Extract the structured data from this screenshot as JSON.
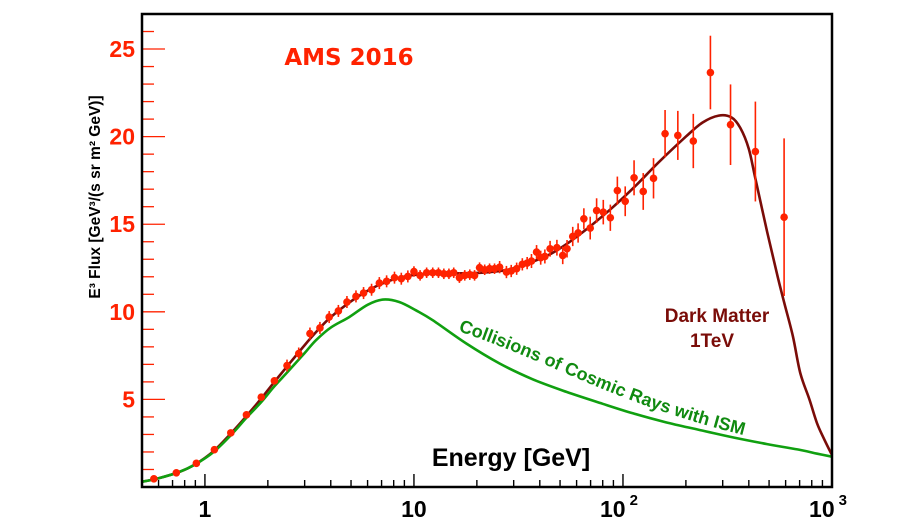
{
  "chart_data": {
    "type": "scatter",
    "title": "AMS 2016",
    "xlabel": "Energy [GeV]",
    "ylabel": "E³ Flux [GeV³/(s sr m² GeV)]",
    "xscale": "log",
    "xlim": [
      0.5,
      1000
    ],
    "ylim": [
      0,
      27
    ],
    "grid": false,
    "colors": {
      "data": "#ff2200",
      "dark_matter": "#7a0c08",
      "cosmic_rays": "#10a010",
      "ytick": "#ff2200",
      "axis": "#000000",
      "title": "#ff2200",
      "dm_label": "#7a0c08",
      "cr_label": "#108a10"
    },
    "x_ticks": [
      {
        "value": 1,
        "label": "1",
        "exp": ""
      },
      {
        "value": 10,
        "label": "10",
        "exp": ""
      },
      {
        "value": 100,
        "label": "10",
        "exp": "2"
      },
      {
        "value": 1000,
        "label": "10",
        "exp": "3"
      }
    ],
    "y_ticks": [
      {
        "value": 5,
        "label": "5"
      },
      {
        "value": 10,
        "label": "10"
      },
      {
        "value": 15,
        "label": "15"
      },
      {
        "value": 20,
        "label": "20"
      },
      {
        "value": 25,
        "label": "25"
      }
    ],
    "annotations": {
      "dark_matter_line1": "Dark Matter",
      "dark_matter_line2": "1TeV",
      "cosmic_rays": "Collisions of Cosmic Rays with ISM"
    },
    "series": [
      {
        "name": "AMS data",
        "type": "scatter",
        "points": [
          {
            "x": 0.57,
            "y": 0.47,
            "err": 0.05
          },
          {
            "x": 0.73,
            "y": 0.81,
            "err": 0.05
          },
          {
            "x": 0.91,
            "y": 1.35,
            "err": 0.06
          },
          {
            "x": 1.11,
            "y": 2.13,
            "err": 0.07
          },
          {
            "x": 1.33,
            "y": 3.09,
            "err": 0.08
          },
          {
            "x": 1.58,
            "y": 4.12,
            "err": 0.1
          },
          {
            "x": 1.86,
            "y": 5.13,
            "err": 0.12
          },
          {
            "x": 2.15,
            "y": 6.06,
            "err": 0.13
          },
          {
            "x": 2.47,
            "y": 6.93,
            "err": 0.15
          },
          {
            "x": 2.81,
            "y": 7.62,
            "err": 0.18
          },
          {
            "x": 3.18,
            "y": 8.76,
            "err": 0.25
          },
          {
            "x": 3.55,
            "y": 9.08,
            "err": 0.25
          },
          {
            "x": 3.93,
            "y": 9.7,
            "err": 0.25
          },
          {
            "x": 4.35,
            "y": 10.05,
            "err": 0.25
          },
          {
            "x": 4.78,
            "y": 10.56,
            "err": 0.25
          },
          {
            "x": 5.28,
            "y": 10.88,
            "err": 0.25
          },
          {
            "x": 5.74,
            "y": 11.07,
            "err": 0.25
          },
          {
            "x": 6.27,
            "y": 11.26,
            "err": 0.25
          },
          {
            "x": 6.83,
            "y": 11.64,
            "err": 0.25
          },
          {
            "x": 7.4,
            "y": 11.74,
            "err": 0.25
          },
          {
            "x": 8.07,
            "y": 11.95,
            "err": 0.25
          },
          {
            "x": 8.7,
            "y": 11.89,
            "err": 0.25
          },
          {
            "x": 9.35,
            "y": 12.02,
            "err": 0.25
          },
          {
            "x": 10.0,
            "y": 12.3,
            "err": 0.3
          },
          {
            "x": 10.7,
            "y": 12.08,
            "err": 0.3
          },
          {
            "x": 11.5,
            "y": 12.23,
            "err": 0.3
          },
          {
            "x": 12.3,
            "y": 12.23,
            "err": 0.3
          },
          {
            "x": 13.1,
            "y": 12.23,
            "err": 0.3
          },
          {
            "x": 13.9,
            "y": 12.17,
            "err": 0.3
          },
          {
            "x": 14.7,
            "y": 12.17,
            "err": 0.3
          },
          {
            "x": 15.5,
            "y": 12.23,
            "err": 0.3
          },
          {
            "x": 16.5,
            "y": 11.95,
            "err": 0.3
          },
          {
            "x": 17.5,
            "y": 12.08,
            "err": 0.3
          },
          {
            "x": 18.5,
            "y": 12.12,
            "err": 0.3
          },
          {
            "x": 19.5,
            "y": 12.08,
            "err": 0.3
          },
          {
            "x": 20.6,
            "y": 12.52,
            "err": 0.3
          },
          {
            "x": 21.8,
            "y": 12.4,
            "err": 0.3
          },
          {
            "x": 23.0,
            "y": 12.46,
            "err": 0.3
          },
          {
            "x": 24.3,
            "y": 12.46,
            "err": 0.3
          },
          {
            "x": 25.7,
            "y": 12.55,
            "err": 0.35
          },
          {
            "x": 27.7,
            "y": 12.27,
            "err": 0.35
          },
          {
            "x": 29.2,
            "y": 12.33,
            "err": 0.35
          },
          {
            "x": 31.0,
            "y": 12.46,
            "err": 0.35
          },
          {
            "x": 33.0,
            "y": 12.71,
            "err": 0.35
          },
          {
            "x": 34.8,
            "y": 12.78,
            "err": 0.35
          },
          {
            "x": 36.5,
            "y": 12.9,
            "err": 0.4
          },
          {
            "x": 38.6,
            "y": 13.41,
            "err": 0.4
          },
          {
            "x": 40.4,
            "y": 13.09,
            "err": 0.4
          },
          {
            "x": 42.3,
            "y": 13.16,
            "err": 0.4
          },
          {
            "x": 44.8,
            "y": 13.6,
            "err": 0.45
          },
          {
            "x": 48.3,
            "y": 13.66,
            "err": 0.45
          },
          {
            "x": 51.5,
            "y": 13.22,
            "err": 0.5
          },
          {
            "x": 54.0,
            "y": 13.6,
            "err": 0.5
          },
          {
            "x": 57.5,
            "y": 14.3,
            "err": 0.55
          },
          {
            "x": 61.0,
            "y": 14.5,
            "err": 0.55
          },
          {
            "x": 65.0,
            "y": 15.31,
            "err": 0.6
          },
          {
            "x": 69.7,
            "y": 14.78,
            "err": 0.65
          },
          {
            "x": 74.8,
            "y": 15.78,
            "err": 0.7
          },
          {
            "x": 80.5,
            "y": 15.69,
            "err": 0.7
          },
          {
            "x": 87.0,
            "y": 15.37,
            "err": 0.75
          },
          {
            "x": 94.0,
            "y": 16.92,
            "err": 0.8
          },
          {
            "x": 102.5,
            "y": 16.31,
            "err": 0.85
          },
          {
            "x": 113.0,
            "y": 17.65,
            "err": 1.0
          },
          {
            "x": 125.0,
            "y": 16.87,
            "err": 1.05
          },
          {
            "x": 140.0,
            "y": 17.62,
            "err": 1.15
          },
          {
            "x": 159.0,
            "y": 20.17,
            "err": 1.35
          },
          {
            "x": 183.0,
            "y": 20.07,
            "err": 1.4
          },
          {
            "x": 217.0,
            "y": 19.75,
            "err": 1.55
          },
          {
            "x": 262.0,
            "y": 23.66,
            "err": 2.1
          },
          {
            "x": 327.0,
            "y": 20.68,
            "err": 2.3
          },
          {
            "x": 430.0,
            "y": 19.15,
            "err": 2.85
          },
          {
            "x": 590.0,
            "y": 15.4,
            "err": 4.5
          }
        ]
      },
      {
        "name": "Dark Matter 1TeV",
        "type": "line",
        "points": [
          {
            "x": 0.5,
            "y": 0.3
          },
          {
            "x": 0.6,
            "y": 0.5
          },
          {
            "x": 0.75,
            "y": 0.85
          },
          {
            "x": 0.9,
            "y": 1.3
          },
          {
            "x": 1.1,
            "y": 2.05
          },
          {
            "x": 1.33,
            "y": 3.05
          },
          {
            "x": 1.58,
            "y": 4.05
          },
          {
            "x": 1.86,
            "y": 5.05
          },
          {
            "x": 2.15,
            "y": 6.0
          },
          {
            "x": 2.5,
            "y": 6.95
          },
          {
            "x": 3.0,
            "y": 8.1
          },
          {
            "x": 3.5,
            "y": 9.0
          },
          {
            "x": 4.0,
            "y": 9.7
          },
          {
            "x": 5.0,
            "y": 10.6
          },
          {
            "x": 6.0,
            "y": 11.2
          },
          {
            "x": 7.0,
            "y": 11.6
          },
          {
            "x": 8.5,
            "y": 11.95
          },
          {
            "x": 10.0,
            "y": 12.1
          },
          {
            "x": 13.0,
            "y": 12.2
          },
          {
            "x": 17.0,
            "y": 12.2
          },
          {
            "x": 22.0,
            "y": 12.25
          },
          {
            "x": 28.0,
            "y": 12.4
          },
          {
            "x": 35.0,
            "y": 12.75
          },
          {
            "x": 45.0,
            "y": 13.3
          },
          {
            "x": 55.0,
            "y": 13.95
          },
          {
            "x": 70.0,
            "y": 14.9
          },
          {
            "x": 90.0,
            "y": 16.0
          },
          {
            "x": 115.0,
            "y": 17.2
          },
          {
            "x": 150.0,
            "y": 18.6
          },
          {
            "x": 200.0,
            "y": 20.0
          },
          {
            "x": 240.0,
            "y": 20.8
          },
          {
            "x": 287.0,
            "y": 21.2
          },
          {
            "x": 330.0,
            "y": 21.1
          },
          {
            "x": 364.0,
            "y": 20.5
          },
          {
            "x": 400.0,
            "y": 19.3
          },
          {
            "x": 430.0,
            "y": 17.6
          },
          {
            "x": 490.0,
            "y": 14.55
          },
          {
            "x": 550.0,
            "y": 12.0
          },
          {
            "x": 590.0,
            "y": 10.55
          },
          {
            "x": 650.0,
            "y": 8.6
          },
          {
            "x": 706.0,
            "y": 6.48
          },
          {
            "x": 780.0,
            "y": 5.0
          },
          {
            "x": 849.0,
            "y": 3.63
          },
          {
            "x": 920.0,
            "y": 2.7
          },
          {
            "x": 1000.0,
            "y": 1.82
          }
        ]
      },
      {
        "name": "Collisions of Cosmic Rays with ISM",
        "type": "line",
        "points": [
          {
            "x": 0.5,
            "y": 0.3
          },
          {
            "x": 0.6,
            "y": 0.5
          },
          {
            "x": 0.75,
            "y": 0.85
          },
          {
            "x": 0.9,
            "y": 1.3
          },
          {
            "x": 1.1,
            "y": 2.0
          },
          {
            "x": 1.33,
            "y": 2.95
          },
          {
            "x": 1.58,
            "y": 3.95
          },
          {
            "x": 1.86,
            "y": 4.85
          },
          {
            "x": 2.15,
            "y": 5.75
          },
          {
            "x": 2.5,
            "y": 6.6
          },
          {
            "x": 3.0,
            "y": 7.65
          },
          {
            "x": 3.4,
            "y": 8.38
          },
          {
            "x": 4.0,
            "y": 9.1
          },
          {
            "x": 4.9,
            "y": 9.7
          },
          {
            "x": 6.0,
            "y": 10.4
          },
          {
            "x": 7.1,
            "y": 10.7
          },
          {
            "x": 8.5,
            "y": 10.56
          },
          {
            "x": 10.2,
            "y": 10.09
          },
          {
            "x": 12.3,
            "y": 9.52
          },
          {
            "x": 17.8,
            "y": 8.19
          },
          {
            "x": 25.7,
            "y": 7.05
          },
          {
            "x": 37.0,
            "y": 6.15
          },
          {
            "x": 53.7,
            "y": 5.43
          },
          {
            "x": 80.0,
            "y": 4.75
          },
          {
            "x": 112.0,
            "y": 4.2
          },
          {
            "x": 160.0,
            "y": 3.7
          },
          {
            "x": 234.0,
            "y": 3.25
          },
          {
            "x": 340.0,
            "y": 2.82
          },
          {
            "x": 489.0,
            "y": 2.45
          },
          {
            "x": 707.0,
            "y": 2.11
          },
          {
            "x": 850.0,
            "y": 1.9
          },
          {
            "x": 1000.0,
            "y": 1.73
          }
        ]
      }
    ]
  }
}
